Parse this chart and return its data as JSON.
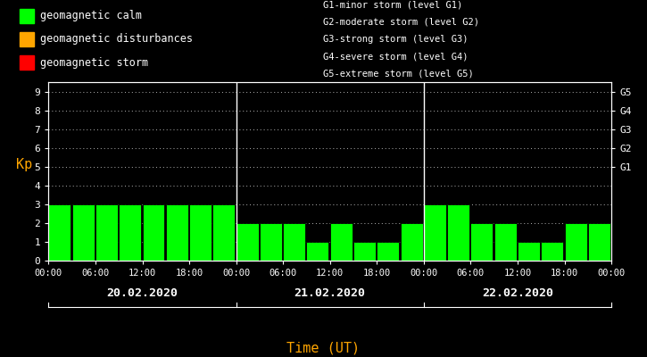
{
  "background_color": "#000000",
  "bar_color_calm": "#00ff00",
  "bar_color_disturb": "#ffa500",
  "bar_color_storm": "#ff0000",
  "text_color": "#ffffff",
  "orange_color": "#ffa500",
  "dates": [
    "20.02.2020",
    "21.02.2020",
    "22.02.2020"
  ],
  "day1_kp": [
    3,
    3,
    3,
    3,
    3,
    3,
    3,
    3
  ],
  "day2_kp": [
    2,
    2,
    2,
    1,
    2,
    1,
    1,
    2
  ],
  "day3_kp": [
    3,
    3,
    2,
    2,
    1,
    1,
    2,
    2
  ],
  "calm_max": 3.99,
  "disturb_max": 4.99,
  "ylim": [
    0,
    9.5
  ],
  "yticks": [
    0,
    1,
    2,
    3,
    4,
    5,
    6,
    7,
    8,
    9
  ],
  "g_labels": [
    "G5",
    "G4",
    "G3",
    "G2",
    "G1"
  ],
  "g_positions": [
    9,
    8,
    7,
    6,
    5
  ],
  "legend_left": [
    {
      "label": "geomagnetic calm",
      "color": "#00ff00"
    },
    {
      "label": "geomagnetic disturbances",
      "color": "#ffa500"
    },
    {
      "label": "geomagnetic storm",
      "color": "#ff0000"
    }
  ],
  "legend_right": [
    "G1-minor storm (level G1)",
    "G2-moderate storm (level G2)",
    "G3-strong storm (level G3)",
    "G4-severe storm (level G4)",
    "G5-extreme storm (level G5)"
  ],
  "xlabel": "Time (UT)",
  "ylabel": "Kp",
  "figsize": [
    7.25,
    4.0
  ],
  "dpi": 100
}
